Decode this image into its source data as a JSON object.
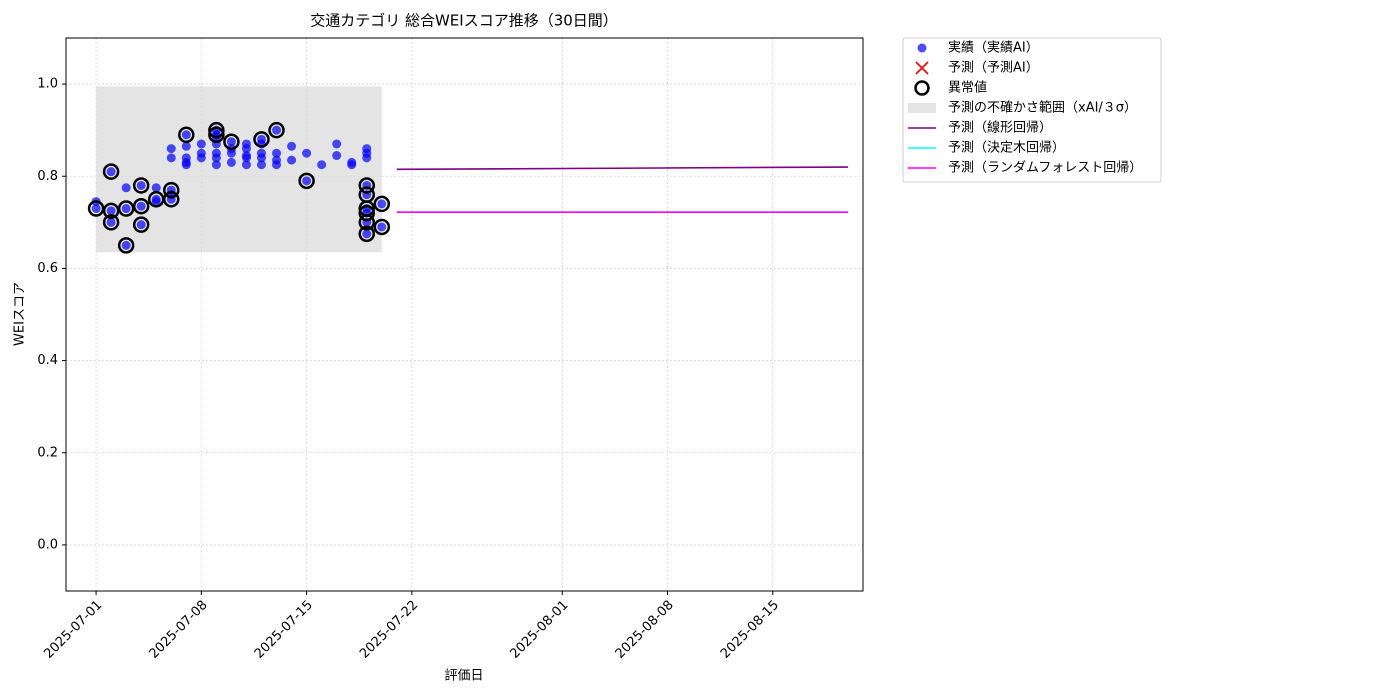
{
  "chart_data": {
    "type": "scatter",
    "title": "交通カテゴリ 総合WEIスコア推移（30日間）",
    "x_label": "評価日",
    "y_label": "WEIスコア",
    "xlim": [
      "2025-06-29",
      "2025-08-21"
    ],
    "ylim": [
      -0.1,
      1.1
    ],
    "xticks": [
      "2025-07-01",
      "2025-07-08",
      "2025-07-15",
      "2025-07-22",
      "2025-08-01",
      "2025-08-08",
      "2025-08-15"
    ],
    "yticks": [
      {
        "value": 0,
        "label": "0.0"
      },
      0.2,
      0.4,
      0.6,
      0.8,
      {
        "value": 1,
        "label": "1.0"
      }
    ],
    "grid": true,
    "legend": "outside-right",
    "series": [
      {
        "name": "実績（実績AI）",
        "kind": "scatter",
        "color": "#0000ff",
        "x": [
          "2025-07-01",
          "2025-07-01",
          "2025-07-02",
          "2025-07-02",
          "2025-07-02",
          "2025-07-03",
          "2025-07-03",
          "2025-07-03",
          "2025-07-04",
          "2025-07-04",
          "2025-07-04",
          "2025-07-05",
          "2025-07-05",
          "2025-07-05",
          "2025-07-06",
          "2025-07-06",
          "2025-07-06",
          "2025-07-06",
          "2025-07-06",
          "2025-07-07",
          "2025-07-07",
          "2025-07-07",
          "2025-07-07",
          "2025-07-07",
          "2025-07-08",
          "2025-07-08",
          "2025-07-08",
          "2025-07-09",
          "2025-07-09",
          "2025-07-09",
          "2025-07-09",
          "2025-07-09",
          "2025-07-09",
          "2025-07-09",
          "2025-07-10",
          "2025-07-10",
          "2025-07-10",
          "2025-07-10",
          "2025-07-11",
          "2025-07-11",
          "2025-07-11",
          "2025-07-11",
          "2025-07-11",
          "2025-07-12",
          "2025-07-12",
          "2025-07-12",
          "2025-07-12",
          "2025-07-12",
          "2025-07-13",
          "2025-07-13",
          "2025-07-13",
          "2025-07-13",
          "2025-07-14",
          "2025-07-14",
          "2025-07-15",
          "2025-07-15",
          "2025-07-16",
          "2025-07-17",
          "2025-07-17",
          "2025-07-18",
          "2025-07-18",
          "2025-07-19",
          "2025-07-19",
          "2025-07-19",
          "2025-07-19",
          "2025-07-19",
          "2025-07-19",
          "2025-07-19",
          "2025-07-19",
          "2025-07-19",
          "2025-07-20",
          "2025-07-20"
        ],
        "values": [
          0.745,
          0.73,
          0.81,
          0.7,
          0.725,
          0.775,
          0.65,
          0.73,
          0.78,
          0.695,
          0.735,
          0.75,
          0.745,
          0.775,
          0.77,
          0.75,
          0.76,
          0.86,
          0.84,
          0.83,
          0.825,
          0.865,
          0.89,
          0.84,
          0.87,
          0.84,
          0.85,
          0.9,
          0.85,
          0.84,
          0.89,
          0.885,
          0.87,
          0.825,
          0.83,
          0.875,
          0.85,
          0.86,
          0.84,
          0.86,
          0.825,
          0.845,
          0.87,
          0.88,
          0.85,
          0.87,
          0.825,
          0.84,
          0.9,
          0.835,
          0.825,
          0.85,
          0.865,
          0.835,
          0.85,
          0.79,
          0.825,
          0.87,
          0.845,
          0.83,
          0.825,
          0.86,
          0.85,
          0.84,
          0.78,
          0.76,
          0.73,
          0.72,
          0.7,
          0.675,
          0.74,
          0.69
        ]
      },
      {
        "name": "予測（予測AI）",
        "kind": "cross",
        "color": "#ff0000",
        "x": [],
        "values": []
      },
      {
        "name": "異常値",
        "kind": "ring",
        "color": "#000000",
        "x": [
          "2025-07-01",
          "2025-07-02",
          "2025-07-02",
          "2025-07-02",
          "2025-07-03",
          "2025-07-03",
          "2025-07-04",
          "2025-07-04",
          "2025-07-04",
          "2025-07-05",
          "2025-07-06",
          "2025-07-06",
          "2025-07-07",
          "2025-07-09",
          "2025-07-09",
          "2025-07-10",
          "2025-07-12",
          "2025-07-13",
          "2025-07-15",
          "2025-07-19",
          "2025-07-19",
          "2025-07-19",
          "2025-07-19",
          "2025-07-19",
          "2025-07-19",
          "2025-07-20",
          "2025-07-20"
        ],
        "values": [
          0.73,
          0.81,
          0.7,
          0.725,
          0.65,
          0.73,
          0.78,
          0.695,
          0.735,
          0.75,
          0.77,
          0.75,
          0.89,
          0.9,
          0.89,
          0.875,
          0.88,
          0.9,
          0.79,
          0.78,
          0.76,
          0.73,
          0.72,
          0.7,
          0.675,
          0.74,
          0.69
        ]
      },
      {
        "name": "予測の不確かさ範囲（xAI/３σ）",
        "kind": "band",
        "color": "#d9d9d9",
        "x": [
          "2025-07-01",
          "2025-07-20"
        ],
        "lower": [
          0.635,
          0.635
        ],
        "upper": [
          0.995,
          0.995
        ]
      },
      {
        "name": "予測（線形回帰）",
        "kind": "line",
        "color": "#800080",
        "x": [
          "2025-07-21",
          "2025-08-20"
        ],
        "values": [
          0.815,
          0.82
        ]
      },
      {
        "name": "予測（決定木回帰）",
        "kind": "line",
        "color": "#00ffff",
        "x": [
          "2025-07-21",
          "2025-08-20"
        ],
        "values": [
          0.722,
          0.722
        ]
      },
      {
        "name": "予測（ランダムフォレスト回帰）",
        "kind": "line",
        "color": "#ff00ff",
        "x": [
          "2025-07-21",
          "2025-08-20"
        ],
        "values": [
          0.722,
          0.722
        ]
      }
    ]
  }
}
